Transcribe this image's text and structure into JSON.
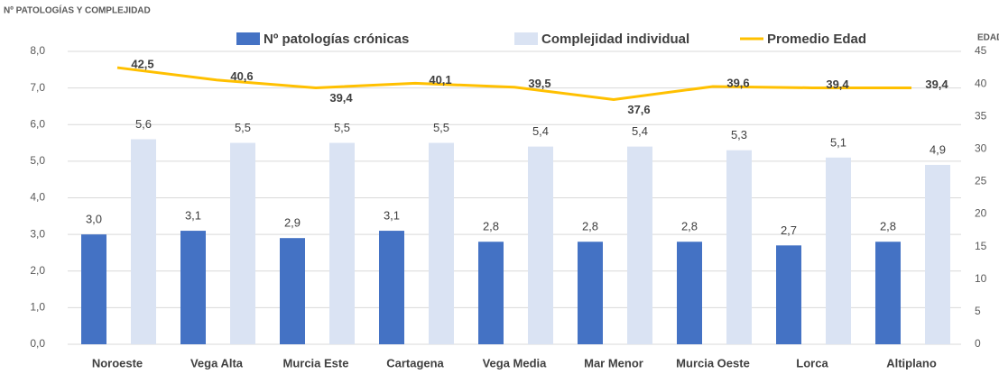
{
  "chart_data": {
    "type": "bar_line",
    "y_label": "Nº PATOLOGÍAS Y COMPLEJIDAD",
    "y2_label": "EDAD",
    "categories": [
      "Noroeste",
      "Vega Alta",
      "Murcia Este",
      "Cartagena",
      "Vega Media",
      "Mar Menor",
      "Murcia Oeste",
      "Lorca",
      "Altiplano"
    ],
    "series": [
      {
        "name": "Nº patologías crónicas",
        "color": "#4472c4",
        "values": [
          3.0,
          3.1,
          2.9,
          3.1,
          2.8,
          2.8,
          2.8,
          2.7,
          2.8
        ],
        "value_labels": [
          "3,0",
          "3,1",
          "2,9",
          "3,1",
          "2,8",
          "2,8",
          "2,8",
          "2,7",
          "2,8"
        ]
      },
      {
        "name": "Complejidad individual",
        "color": "#dae3f3",
        "values": [
          5.6,
          5.5,
          5.5,
          5.5,
          5.4,
          5.4,
          5.3,
          5.1,
          4.9
        ],
        "value_labels": [
          "5,6",
          "5,5",
          "5,5",
          "5,5",
          "5,4",
          "5,4",
          "5,3",
          "5,1",
          "4,9"
        ]
      },
      {
        "name": "Promedio Edad",
        "color": "#ffc000",
        "axis": "y2",
        "values": [
          42.5,
          40.6,
          39.4,
          40.1,
          39.5,
          37.6,
          39.6,
          39.4,
          39.4
        ],
        "value_labels": [
          "42,5",
          "40,6",
          "39,4",
          "40,1",
          "39,5",
          "37,6",
          "39,6",
          "39,4",
          "39,4"
        ]
      }
    ],
    "ylim": [
      0,
      8
    ],
    "yticks": [
      {
        "value": 0,
        "label": "0,0"
      },
      {
        "value": 1,
        "label": "1,0"
      },
      {
        "value": 2,
        "label": "2,0"
      },
      {
        "value": 3,
        "label": "3,0"
      },
      {
        "value": 4,
        "label": "4,0"
      },
      {
        "value": 5,
        "label": "5,0"
      },
      {
        "value": 6,
        "label": "6,0"
      },
      {
        "value": 7,
        "label": "7,0"
      },
      {
        "value": 8,
        "label": "8,0"
      }
    ],
    "y2lim": [
      0,
      45
    ],
    "y2ticks": [
      0,
      5,
      10,
      15,
      20,
      25,
      30,
      35,
      40,
      45
    ],
    "grid": true
  }
}
